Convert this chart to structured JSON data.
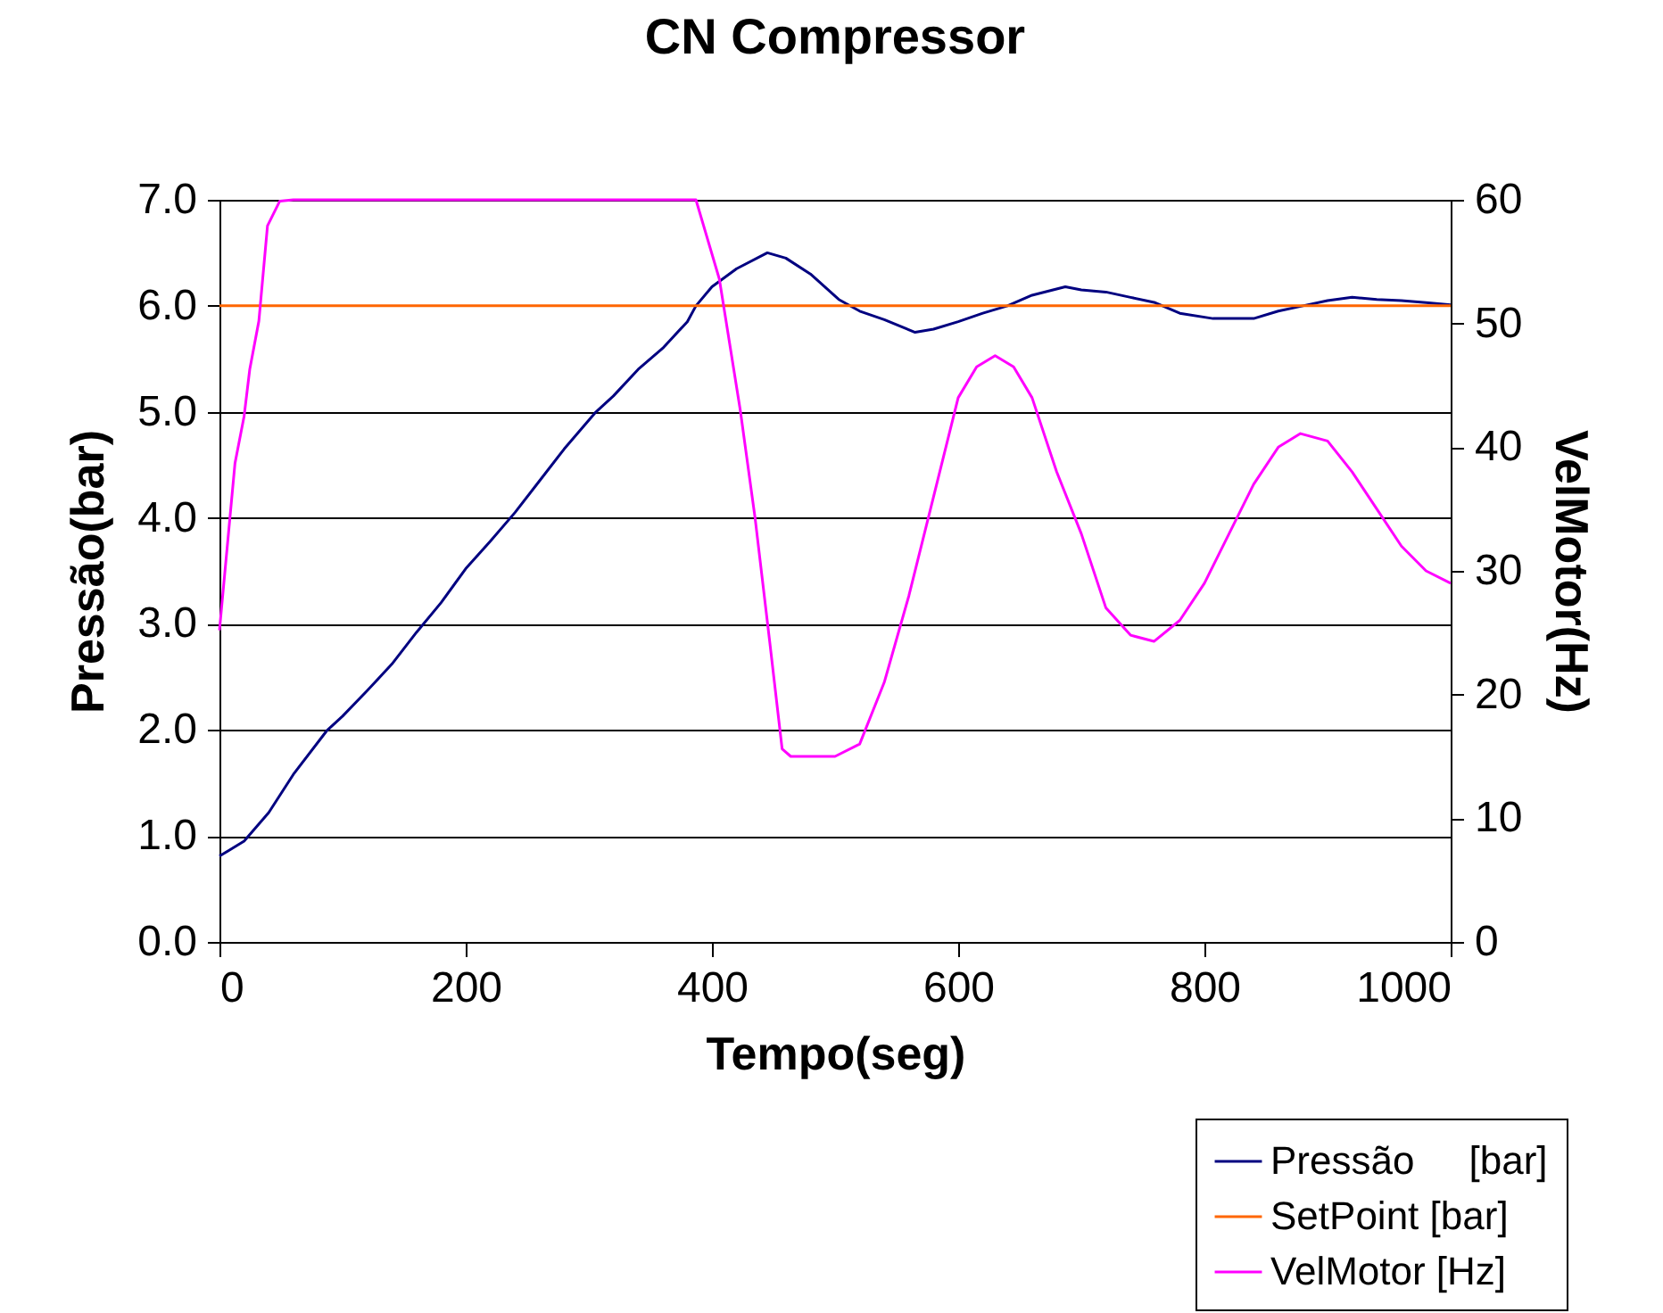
{
  "chart_data": {
    "type": "line",
    "title": "CN Compressor",
    "xlabel": "Tempo(seg)",
    "ylabel": "Pressão(bar)",
    "y2label": "VelMotor(Hz)",
    "xlim": [
      0,
      1000
    ],
    "xticks": [
      0,
      200,
      400,
      600,
      800,
      1000
    ],
    "ylim": [
      0,
      7
    ],
    "yticks": [
      {
        "value": 0,
        "label": "0.0"
      },
      {
        "value": 1,
        "label": "1.0"
      },
      {
        "value": 2,
        "label": "2.0"
      },
      {
        "value": 3,
        "label": "3.0"
      },
      {
        "value": 4,
        "label": "4.0"
      },
      {
        "value": 5,
        "label": "5.0"
      },
      {
        "value": 6,
        "label": "6.0"
      },
      {
        "value": 7,
        "label": "7.0"
      }
    ],
    "y2lim": [
      0,
      60
    ],
    "y2ticks": [
      0,
      10,
      20,
      30,
      40,
      50,
      60
    ],
    "grid": "y",
    "legend": "bottom right",
    "line_style": "solid",
    "series": [
      {
        "name": "Pressão     [bar]",
        "color": "#000080",
        "x": [
          0,
          20,
          40,
          60,
          87,
          100,
          120,
          140,
          160,
          180,
          200,
          220,
          240,
          260,
          280,
          305,
          320,
          340,
          360,
          380,
          387,
          400,
          420,
          445,
          460,
          480,
          503,
          520,
          540,
          565,
          580,
          600,
          620,
          640,
          660,
          687,
          700,
          720,
          740,
          760,
          780,
          807,
          833,
          840,
          860,
          880,
          900,
          920,
          940,
          960,
          980,
          1000
        ],
        "values": [
          0.81,
          0.95,
          1.22,
          1.58,
          1.99,
          2.13,
          2.37,
          2.62,
          2.92,
          3.2,
          3.52,
          3.78,
          4.05,
          4.35,
          4.65,
          4.99,
          5.15,
          5.4,
          5.6,
          5.85,
          6.0,
          6.18,
          6.35,
          6.5,
          6.45,
          6.3,
          6.06,
          5.95,
          5.87,
          5.75,
          5.78,
          5.85,
          5.93,
          6.0,
          6.1,
          6.18,
          6.15,
          6.13,
          6.08,
          6.03,
          5.93,
          5.88,
          5.88,
          5.88,
          5.95,
          6.0,
          6.05,
          6.08,
          6.06,
          6.05,
          6.03,
          6.01
        ]
      },
      {
        "name": "SetPoint [bar]",
        "color": "#ff6600",
        "x": [
          0,
          1000
        ],
        "values": [
          6,
          6
        ]
      },
      {
        "name": "VelMotor [Hz]",
        "color": "#ff00ff",
        "axis": "y2",
        "x": [
          0,
          12.6,
          20,
          24.6,
          32,
          39,
          49,
          60,
          387,
          406,
          423,
          435,
          447,
          457,
          464,
          480,
          500,
          520,
          540,
          560,
          580,
          600,
          615,
          630,
          645,
          660,
          680,
          700,
          720,
          740,
          759,
          780,
          800,
          820,
          840,
          860,
          878,
          900,
          920,
          940,
          960,
          980,
          1000
        ],
        "values": [
          25.2,
          38.7,
          42.5,
          46.3,
          50.2,
          57.9,
          59.9,
          60,
          60,
          53.6,
          43,
          34.3,
          24.2,
          15.6,
          15,
          15,
          15,
          16,
          21,
          28,
          36,
          44,
          46.5,
          47.4,
          46.5,
          44,
          38,
          33,
          27,
          24.8,
          24.3,
          26,
          29,
          33,
          37,
          40,
          41.1,
          40.5,
          38,
          35,
          32,
          30,
          29.0
        ]
      }
    ]
  }
}
